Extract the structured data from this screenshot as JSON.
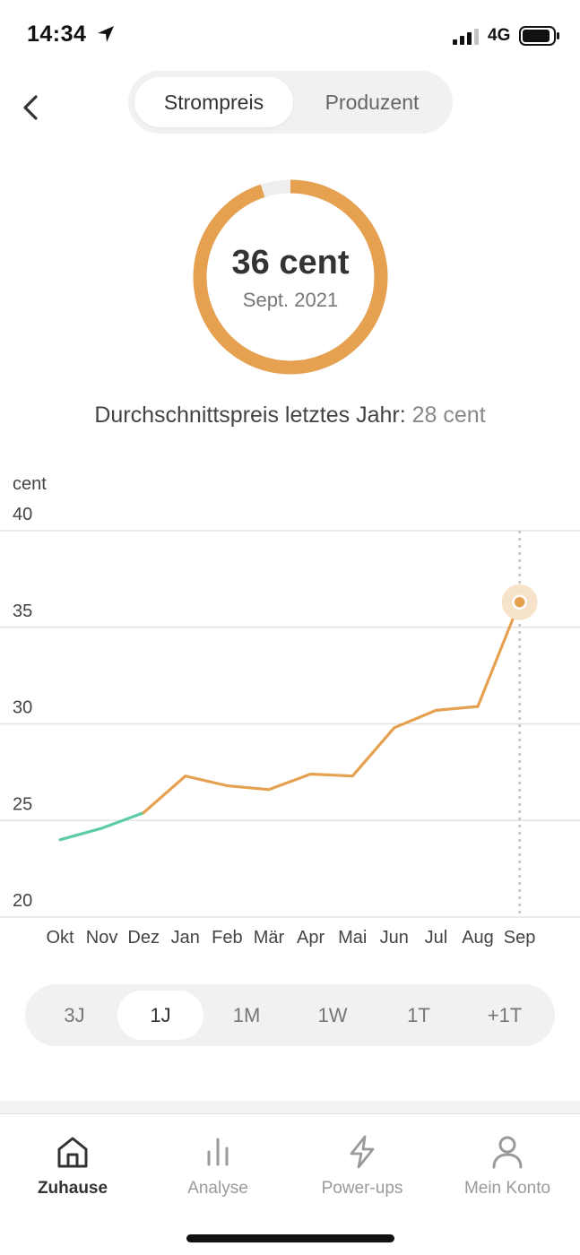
{
  "status_bar": {
    "time": "14:34",
    "network": "4G"
  },
  "segment": {
    "options": [
      "Strompreis",
      "Produzent"
    ],
    "selected": "Strompreis"
  },
  "gauge": {
    "value": "36 cent",
    "date": "Sept. 2021",
    "fill_fraction": 0.95,
    "color": "#E5A050"
  },
  "average": {
    "label": "Durchschnittspreis letztes Jahr:",
    "value": "28 cent"
  },
  "chart_data": {
    "type": "line",
    "ylabel": "cent",
    "ylim": [
      20,
      40
    ],
    "yticks": [
      "40",
      "35",
      "30",
      "25",
      "20"
    ],
    "categories": [
      "Okt",
      "Nov",
      "Dez",
      "Jan",
      "Feb",
      "Mär",
      "Apr",
      "Mai",
      "Jun",
      "Jul",
      "Aug",
      "Sep"
    ],
    "values": [
      24.0,
      24.6,
      25.4,
      27.3,
      26.8,
      26.6,
      27.4,
      27.3,
      29.8,
      30.7,
      30.9,
      36.3
    ],
    "highlight": "Sep",
    "colors": {
      "past": "#5DCBA3",
      "main": "#E5A050"
    }
  },
  "range": {
    "options": [
      "3J",
      "1J",
      "1M",
      "1W",
      "1T",
      "+1T"
    ],
    "selected": "1J"
  },
  "tabbar": {
    "home": "Zuhause",
    "analyse": "Analyse",
    "powerups": "Power-ups",
    "account": "Mein Konto"
  }
}
